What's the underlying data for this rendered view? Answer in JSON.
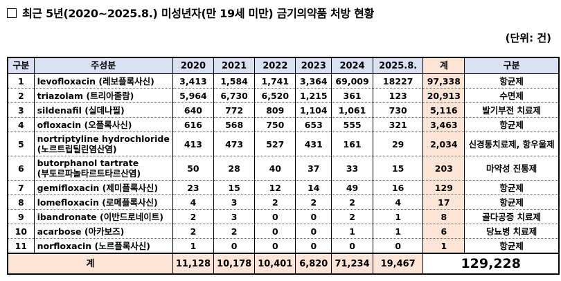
{
  "title": "최근 5년(2020~2025.8.) 미성년자(만 19세 미만) 금기의약품 처방 현황",
  "unit": "(단위: 건)",
  "table": {
    "headers": {
      "no": "구분",
      "ingredient": "주성분",
      "y2020": "2020",
      "y2021": "2021",
      "y2022": "2022",
      "y2023": "2023",
      "y2024": "2024",
      "y2025": "2025.8.",
      "sum": "계",
      "category": "구분"
    },
    "rows": [
      {
        "no": "1",
        "name": "levofloxacin (레보플록사신)",
        "name2": "",
        "y2020": "3,413",
        "y2021": "1,584",
        "y2022": "1,741",
        "y2023": "3,364",
        "y2024": "69,009",
        "y2025": "18227",
        "sum": "97,338",
        "category": "항균제"
      },
      {
        "no": "2",
        "name": "triazolam (트리아졸람)",
        "name2": "",
        "y2020": "5,964",
        "y2021": "6,730",
        "y2022": "6,520",
        "y2023": "1,215",
        "y2024": "361",
        "y2025": "123",
        "sum": "20,913",
        "category": "수면제"
      },
      {
        "no": "3",
        "name": "sildenafil (실데나필)",
        "name2": "",
        "y2020": "640",
        "y2021": "772",
        "y2022": "809",
        "y2023": "1,104",
        "y2024": "1,061",
        "y2025": "730",
        "sum": "5,116",
        "category": "발기부전 치료제"
      },
      {
        "no": "4",
        "name": "ofloxacin (오플록사신)",
        "name2": "",
        "y2020": "616",
        "y2021": "568",
        "y2022": "750",
        "y2023": "653",
        "y2024": "555",
        "y2025": "321",
        "sum": "3,463",
        "category": "항균제"
      },
      {
        "no": "5",
        "name": "nortriptyline hydrochloride",
        "name2": "(노르트립틸린염산염)",
        "y2020": "413",
        "y2021": "473",
        "y2022": "527",
        "y2023": "431",
        "y2024": "161",
        "y2025": "29",
        "sum": "2,034",
        "category": "신경통치료제, 항우울제"
      },
      {
        "no": "6",
        "name": "butorphanol tartrate",
        "name2": "(부토르파놀타르트타르산염)",
        "y2020": "50",
        "y2021": "28",
        "y2022": "40",
        "y2023": "37",
        "y2024": "33",
        "y2025": "15",
        "sum": "203",
        "category": "마약성 진통제"
      },
      {
        "no": "7",
        "name": "gemifloxacin (제미플록사신)",
        "name2": "",
        "y2020": "23",
        "y2021": "15",
        "y2022": "12",
        "y2023": "14",
        "y2024": "49",
        "y2025": "16",
        "sum": "129",
        "category": "항균제"
      },
      {
        "no": "8",
        "name": "lomefloxacin (로메플록사신)",
        "name2": "",
        "y2020": "4",
        "y2021": "3",
        "y2022": "2",
        "y2023": "2",
        "y2024": "2",
        "y2025": "4",
        "sum": "17",
        "category": "항균제"
      },
      {
        "no": "9",
        "name": "ibandronate (이반드로네이트)",
        "name2": "",
        "y2020": "2",
        "y2021": "3",
        "y2022": "0",
        "y2023": "0",
        "y2024": "2",
        "y2025": "1",
        "sum": "8",
        "category": "골다공증 치료제"
      },
      {
        "no": "10",
        "name": "acarbose (아카보즈)",
        "name2": "",
        "y2020": "2",
        "y2021": "2",
        "y2022": "0",
        "y2023": "0",
        "y2024": "1",
        "y2025": "1",
        "sum": "6",
        "category": "당뇨병 치료제"
      },
      {
        "no": "11",
        "name": "norfloxacin (노르플록사신)",
        "name2": "",
        "y2020": "1",
        "y2021": "0",
        "y2022": "0",
        "y2023": "0",
        "y2024": "0",
        "y2025": "0",
        "sum": "1",
        "category": "항균제"
      }
    ],
    "total": {
      "label": "계",
      "y2020": "11,128",
      "y2021": "10,178",
      "y2022": "10,401",
      "y2023": "6,820",
      "y2024": "71,234",
      "y2025": "19,467",
      "grand": "129,228"
    }
  },
  "colors": {
    "header_bg": "#d9e1f2",
    "sum_bg": "#fce4d6"
  }
}
